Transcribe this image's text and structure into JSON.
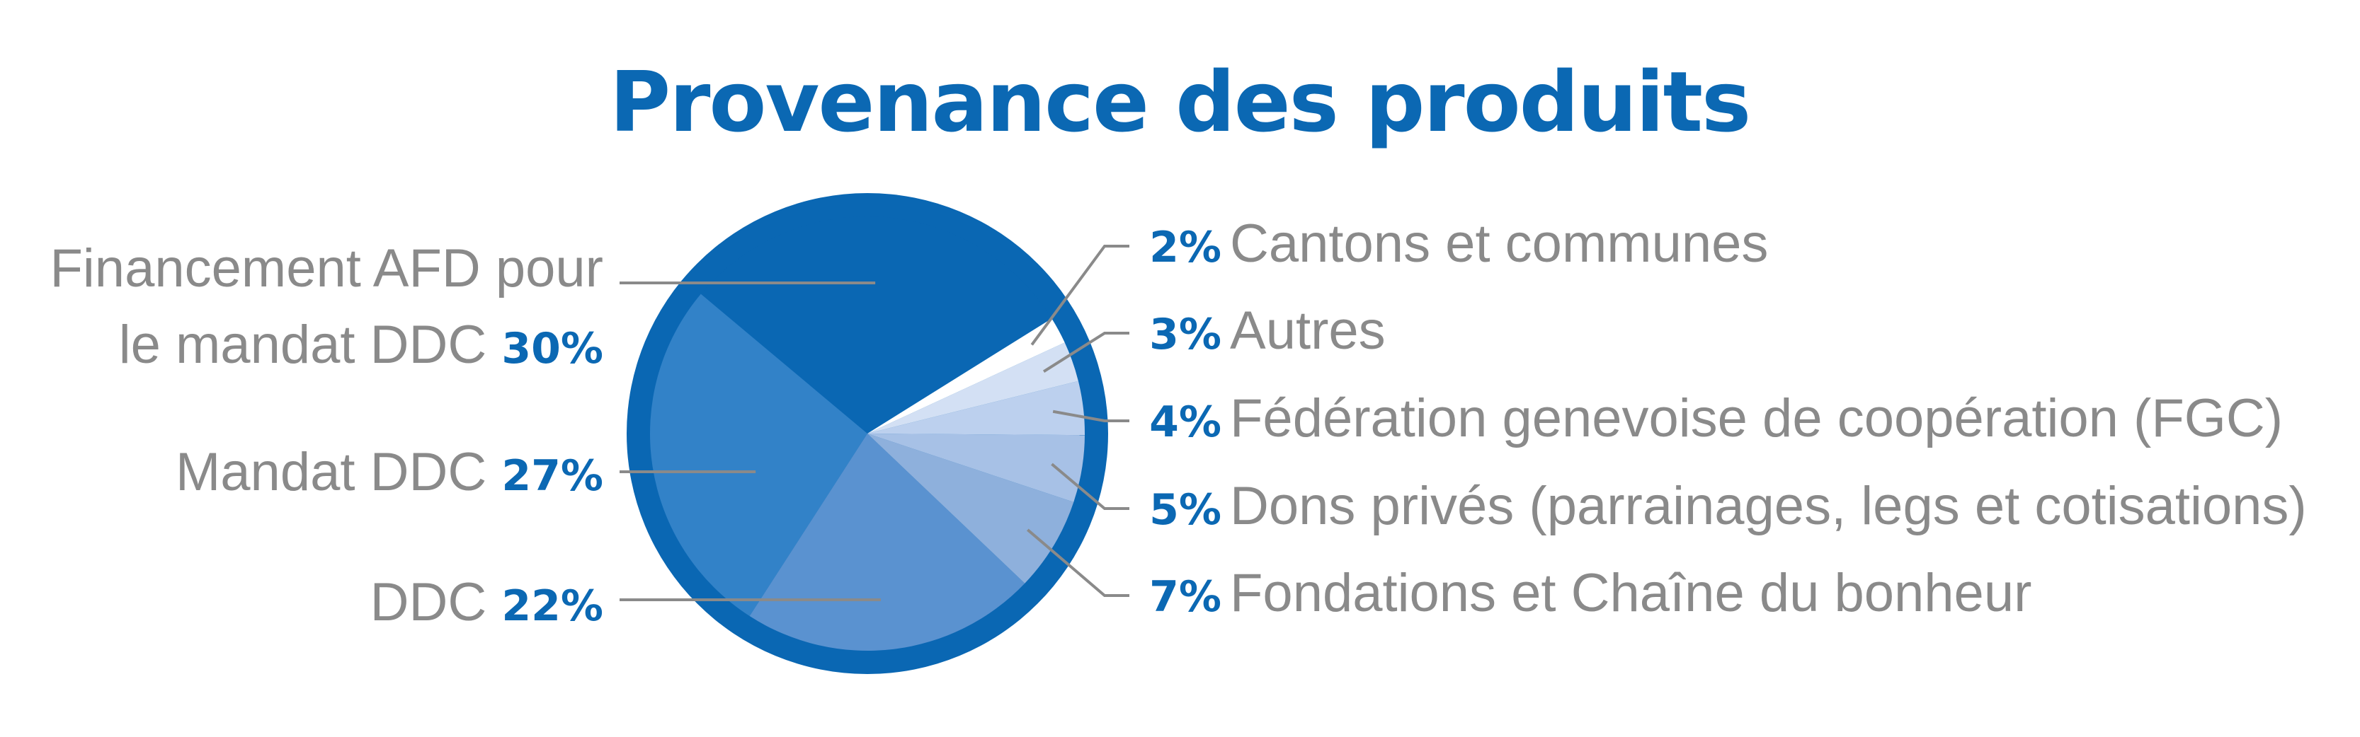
{
  "chart_data": {
    "type": "pie",
    "title": "Provenance des produits",
    "slices": [
      {
        "label": "Financement AFD pour le mandat DDC",
        "label_lines": [
          "Financement AFD pour",
          "le mandat DDC"
        ],
        "value": 30,
        "value_label": "30%",
        "color": "#0a67b3"
      },
      {
        "label": "Mandat DDC",
        "label_lines": [
          "Mandat DDC"
        ],
        "value": 27,
        "value_label": "27%",
        "color": "#3282c8"
      },
      {
        "label": "DDC",
        "label_lines": [
          "DDC"
        ],
        "value": 22,
        "value_label": "22%",
        "color": "#5a92d0"
      },
      {
        "label": "Fondations et Chaîne du bonheur",
        "label_lines": [
          "Fondations et Chaîne du bonheur"
        ],
        "value": 7,
        "value_label": "7%",
        "color": "#8eb0dc"
      },
      {
        "label": "Dons privés (parrainages, legs et cotisations)",
        "label_lines": [
          "Dons privés (parrainages, legs et cotisations)"
        ],
        "value": 5,
        "value_label": "5%",
        "color": "#a7c1e6"
      },
      {
        "label": "Fédération genevoise de coopération (FGC)",
        "label_lines": [
          "Fédération genevoise de coopération (FGC)"
        ],
        "value": 4,
        "value_label": "4%",
        "color": "#bcd0ee"
      },
      {
        "label": "Autres",
        "label_lines": [
          "Autres"
        ],
        "value": 3,
        "value_label": "3%",
        "color": "#d3e0f4"
      },
      {
        "label": "Cantons et communes",
        "label_lines": [
          "Cantons et communes"
        ],
        "value": 2,
        "value_label": "2%",
        "color": "#ffffff"
      }
    ],
    "ring_color": "#0a67b3",
    "legend": "side-labels-with-leader-lines"
  }
}
